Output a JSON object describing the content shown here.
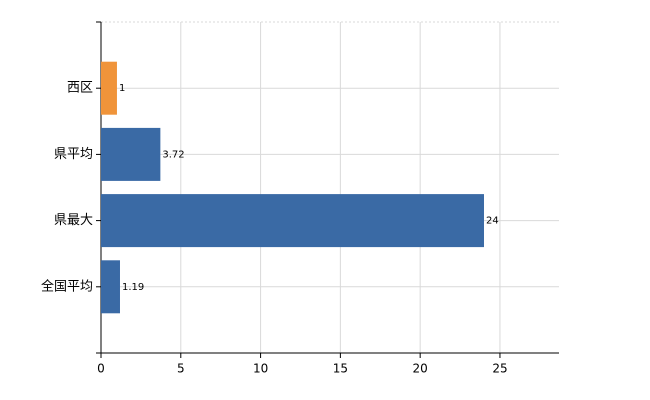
{
  "chart_data": {
    "type": "hbar",
    "categories": [
      "西区",
      "県平均",
      "県最大",
      "全国平均"
    ],
    "values": [
      1,
      3.72,
      24,
      1.19
    ],
    "colors": [
      "#f0943a",
      "#3a6aa5",
      "#3a6aa5",
      "#3a6aa5"
    ],
    "xlim": [
      0,
      28.7
    ],
    "xticks": [
      0,
      5,
      10,
      15,
      20,
      25
    ],
    "grid": true
  }
}
